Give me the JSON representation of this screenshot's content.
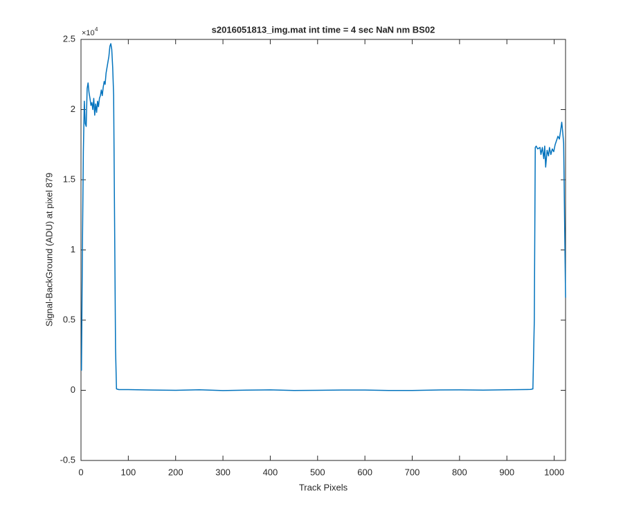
{
  "chart_data": {
    "type": "line",
    "title": "s2016051813_img.mat int time = 4 sec  NaN nm BS02",
    "x_label": "Track Pixels",
    "y_label": "Signal-BackGround (ADU) at pixel 879",
    "y_multiplier_base": "×10",
    "y_multiplier_exponent": "4",
    "color": "#0072bd",
    "x": [
      1,
      3,
      5,
      7,
      9,
      11,
      13,
      15,
      17,
      19,
      21,
      23,
      25,
      27,
      29,
      31,
      33,
      35,
      37,
      39,
      41,
      43,
      45,
      47,
      49,
      51,
      53,
      55,
      57,
      59,
      61,
      63,
      65,
      67,
      69,
      71,
      73,
      75,
      80,
      100,
      150,
      200,
      250,
      300,
      350,
      400,
      450,
      500,
      550,
      600,
      650,
      700,
      750,
      800,
      850,
      900,
      950,
      955,
      958,
      960,
      962,
      965,
      970,
      972,
      975,
      978,
      980,
      982,
      985,
      988,
      990,
      993,
      996,
      999,
      1002,
      1005,
      1008,
      1011,
      1014,
      1016,
      1018,
      1020,
      1022,
      1024
    ],
    "values": [
      1400,
      10000,
      17000,
      20600,
      19000,
      18800,
      21500,
      21900,
      21200,
      20800,
      20300,
      20500,
      20000,
      20800,
      19600,
      20400,
      19800,
      20600,
      20200,
      20800,
      21000,
      21400,
      21000,
      21600,
      22000,
      21800,
      22600,
      23000,
      23400,
      23800,
      24500,
      24700,
      24300,
      23000,
      21000,
      12000,
      3000,
      100,
      50,
      50,
      20,
      0,
      40,
      -20,
      10,
      30,
      -10,
      0,
      20,
      20,
      -10,
      -10,
      20,
      30,
      10,
      40,
      60,
      100,
      5000,
      17300,
      17400,
      17200,
      17300,
      16800,
      17300,
      16500,
      17400,
      15900,
      17100,
      16700,
      17300,
      16800,
      17200,
      17000,
      17500,
      17800,
      18100,
      17900,
      18600,
      19100,
      18400,
      17600,
      12000,
      6600
    ],
    "xlim": [
      0,
      1024
    ],
    "ylim": [
      -5000,
      25000
    ],
    "xticks": [
      0,
      100,
      200,
      300,
      400,
      500,
      600,
      700,
      800,
      900,
      1000
    ],
    "yticks": [
      {
        "value": -5000,
        "label": "-0.5"
      },
      0,
      {
        "value": 5000,
        "label": "0.5"
      },
      {
        "value": 10000,
        "label": "1"
      },
      {
        "value": 15000,
        "label": "1.5"
      },
      {
        "value": 20000,
        "label": "2"
      },
      {
        "value": 25000,
        "label": "2.5"
      }
    ],
    "grid": false
  }
}
